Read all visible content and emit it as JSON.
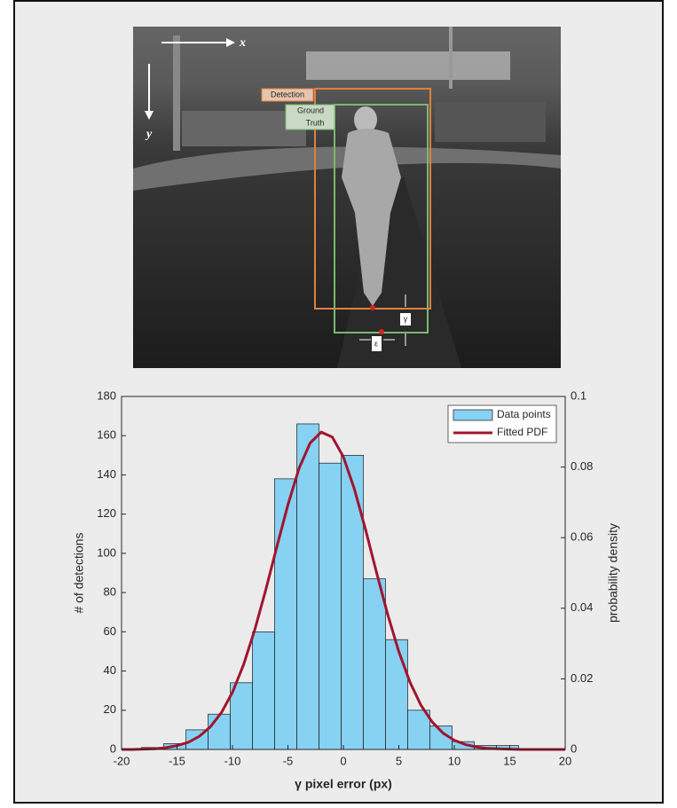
{
  "image": {
    "labels": {
      "x_axis": "x",
      "y_axis": "y",
      "detection": "Detection",
      "ground_truth": [
        "Ground",
        "Truth"
      ],
      "gamma": "γ",
      "epsilon": "ε"
    }
  },
  "chart_data": {
    "type": "histogram",
    "xlabel": "γ pixel error (px)",
    "ylabel": "# of detections",
    "y2label": "probability density",
    "bins": [
      -18.2,
      -16.2,
      -14.2,
      -12.2,
      -10.2,
      -8.2,
      -6.2,
      -4.2,
      -2.2,
      -0.2,
      1.8,
      3.8,
      5.8,
      7.8,
      9.8,
      11.8,
      13.8,
      15.8
    ],
    "series": [
      {
        "name": "Data points",
        "color": "#87d1f2",
        "edge": "#1a1a1a",
        "values": [
          1,
          3,
          10,
          18,
          34,
          60,
          138,
          166,
          146,
          150,
          87,
          56,
          20,
          12,
          4,
          2,
          2
        ]
      },
      {
        "name": "Fitted PDF",
        "type": "line",
        "axis": "y2",
        "color": "#a2142f",
        "x": [
          -20,
          -19,
          -18,
          -17,
          -16,
          -15,
          -14,
          -13,
          -12,
          -11,
          -10,
          -9,
          -8,
          -7,
          -6,
          -5,
          -4,
          -3,
          -2,
          -1,
          0,
          1,
          2,
          3,
          4,
          5,
          6,
          7,
          8,
          9,
          10,
          11,
          12,
          13,
          14,
          15,
          16,
          17,
          18,
          19,
          20
        ],
        "values": [
          0,
          0,
          0.0001,
          0.0002,
          0.0005,
          0.0011,
          0.002,
          0.0037,
          0.0064,
          0.0104,
          0.0162,
          0.024,
          0.0338,
          0.0452,
          0.0574,
          0.0693,
          0.0796,
          0.0868,
          0.0899,
          0.0885,
          0.0829,
          0.0737,
          0.0623,
          0.05,
          0.0382,
          0.0277,
          0.0191,
          0.0125,
          0.0078,
          0.0046,
          0.0026,
          0.0014,
          0.0007,
          0.0003,
          0.0002,
          0.0001,
          0,
          0,
          0,
          0,
          0
        ]
      }
    ],
    "xlim": [
      -20,
      20
    ],
    "xticks": [
      -20,
      -15,
      -10,
      -5,
      0,
      5,
      10,
      15,
      20
    ],
    "ylim": [
      0,
      180
    ],
    "yticks": [
      0,
      20,
      40,
      60,
      80,
      100,
      120,
      140,
      160,
      180
    ],
    "y2lim": [
      0,
      0.1
    ],
    "y2ticks": [
      0,
      0.02,
      0.04,
      0.06,
      0.08,
      0.1
    ],
    "legend": "top-right",
    "background": "#ebebeb"
  }
}
